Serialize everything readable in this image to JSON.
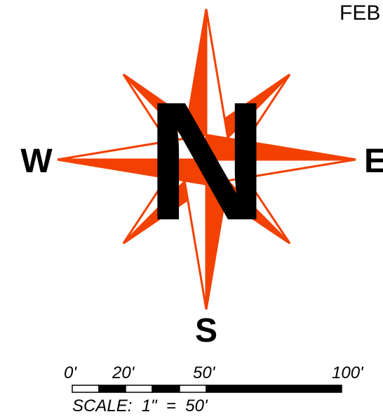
{
  "header": {
    "partial_text": "FEB"
  },
  "compass": {
    "north": "N",
    "south": "S",
    "east": "E",
    "west": "W",
    "colors": {
      "accent": "#f24100",
      "ink": "#000000",
      "background": "#ffffff"
    }
  },
  "scale_bar": {
    "ticks": [
      "0'",
      "20'",
      "50'",
      "100'"
    ],
    "label": "SCALE:  1\"  =  50'"
  }
}
